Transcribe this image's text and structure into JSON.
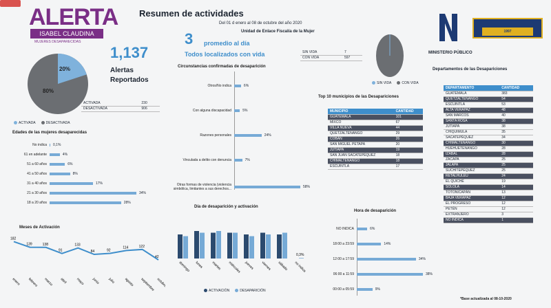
{
  "header": {
    "logo_title": "ALERTA",
    "logo_subtitle": "ISABEL CLAUDINA",
    "logo_tag": "MUJERES DESAPARECIDAS",
    "title": "Resumen de actividades",
    "date_range": "Del 01 d enero al 08 de octubre del año 2020",
    "unit": "Unidad de Enlace Fiscalía de la Mujer",
    "mp_label": "MINISTERIO PÚBLICO",
    "anniv_label": "1997"
  },
  "summary": {
    "alerts_total": "1,137",
    "alerts_label": "Alertas Reportados",
    "avg_value": "3",
    "avg_label": "promedio al día",
    "located_label": "Todos localizados con vida",
    "pie_active_pct": "20%",
    "pie_inactive_pct": "80%",
    "status_table": [
      {
        "label": "ACTIVADA",
        "value": "230"
      },
      {
        "label": "DESACTIVADA",
        "value": "906"
      }
    ],
    "pie_legend": [
      "ACTIVADA",
      "DESACTIVADA"
    ],
    "life_table": [
      {
        "label": "SIN VIDA",
        "value": "7"
      },
      {
        "label": "CON VIDA",
        "value": "597"
      }
    ],
    "life_legend": [
      "SIN VIDA",
      "CON VIDA"
    ]
  },
  "ages": {
    "title": "Edades de las mujeres desaparecidas",
    "rows": [
      {
        "label": "No indica",
        "pct": "0,1%",
        "value": 0.1
      },
      {
        "label": "61 en adelante",
        "pct": "4%",
        "value": 4
      },
      {
        "label": "51 a 60 años",
        "pct": "6%",
        "value": 6
      },
      {
        "label": "41 a 50 años",
        "pct": "8%",
        "value": 8
      },
      {
        "label": "31 a 40 años",
        "pct": "17%",
        "value": 17
      },
      {
        "label": "21 a 30 años",
        "pct": "34%",
        "value": 34
      },
      {
        "label": "18 a 20 años",
        "pct": "28%",
        "value": 28
      }
    ]
  },
  "circumstances": {
    "title": "Circunstancias confirmadas de desaparición",
    "rows": [
      {
        "label": "Otros/No indica",
        "pct": "6%",
        "value": 6
      },
      {
        "label": "Con alguna discapacidad",
        "pct": "5%",
        "value": 5
      },
      {
        "label": "Razones personales",
        "pct": "24%",
        "value": 24
      },
      {
        "label": "Vinculada a delito con denuncia",
        "pct": "7%",
        "value": 7
      },
      {
        "label": "Otras formas de violencia (violencia simbólica, limitantes a sus derechos...",
        "pct": "58%",
        "value": 58
      }
    ]
  },
  "municipios": {
    "title": "Top 10 municipios de las Desapariciones",
    "col_name": "MUNICIPIO",
    "col_qty": "CANTIDAD",
    "rows": [
      {
        "name": "GUATEMALA",
        "qty": "101"
      },
      {
        "name": "MIXCO",
        "qty": "67"
      },
      {
        "name": "VILLA NUEVA",
        "qty": "44"
      },
      {
        "name": "QUETZALTENANGO",
        "qty": "29"
      },
      {
        "name": "COBÁN",
        "qty": "26"
      },
      {
        "name": "SAN MIGUEL PETAPA",
        "qty": "20"
      },
      {
        "name": "JUTIAPA",
        "qty": "19"
      },
      {
        "name": "SAN JUAN SACATEPÉQUEZ",
        "qty": "18"
      },
      {
        "name": "CHIMALTENANGO",
        "qty": "18"
      },
      {
        "name": "ESCUINTLA",
        "qty": "17"
      }
    ]
  },
  "departamentos": {
    "title": "Departamentos de las Desapariciones",
    "col_name": "DEPARTAMENTO",
    "col_qty": "CANTIDAD",
    "rows": [
      {
        "name": "GUATEMALA",
        "qty": "383"
      },
      {
        "name": "QUETZALTENANGO",
        "qty": "54"
      },
      {
        "name": "ESCUINTLA",
        "qty": "53"
      },
      {
        "name": "ALTA VERAPAZ",
        "qty": "48"
      },
      {
        "name": "SAN MARCOS",
        "qty": "40"
      },
      {
        "name": "SANTA ROSA",
        "qty": "38"
      },
      {
        "name": "JUTIAPA",
        "qty": "38"
      },
      {
        "name": "CHIQUIMULA",
        "qty": "35"
      },
      {
        "name": "SACATEPÉQUEZ",
        "qty": "34"
      },
      {
        "name": "CHIMALTENANGO",
        "qty": "30"
      },
      {
        "name": "HUEHUETENANGO",
        "qty": "28"
      },
      {
        "name": "IZABAL",
        "qty": "28"
      },
      {
        "name": "ZACAPA",
        "qty": "25"
      },
      {
        "name": "JALAPA",
        "qty": "25"
      },
      {
        "name": "SUCHITEPÉQUEZ",
        "qty": "25"
      },
      {
        "name": "RETALHULEU",
        "qty": "24"
      },
      {
        "name": "EL QUICHÉ",
        "qty": "19"
      },
      {
        "name": "SOLOLÁ",
        "qty": "14"
      },
      {
        "name": "TOTONICAPÁN",
        "qty": "13"
      },
      {
        "name": "BAJA VERAPAZ",
        "qty": "12"
      },
      {
        "name": "EL PROGRESO",
        "qty": "12"
      },
      {
        "name": "PETÉN",
        "qty": "12"
      },
      {
        "name": "EXTRANJERO",
        "qty": "3"
      },
      {
        "name": "NO INDICA",
        "qty": "1"
      }
    ],
    "footnote": "*Base actualizada al 08-10-2020"
  },
  "hours": {
    "title": "Hora de desaparición",
    "rows": [
      {
        "label": "NO INDICA",
        "pct": "6%",
        "value": 6
      },
      {
        "label": "18:00 a 23:59",
        "pct": "14%",
        "value": 14
      },
      {
        "label": "12:00 a 17:59",
        "pct": "34%",
        "value": 34
      },
      {
        "label": "06:00 a 11:59",
        "pct": "38%",
        "value": 38
      },
      {
        "label": "00:00 a 05:59",
        "pct": "9%",
        "value": 9
      }
    ]
  },
  "chart_data": [
    {
      "type": "line",
      "title": "Meses de Activación",
      "categories": [
        "enero",
        "febrero",
        "marzo",
        "abril",
        "mayo",
        "junio",
        "julio",
        "agosto",
        "septiembre",
        "octubre"
      ],
      "values": [
        182,
        139,
        138,
        91,
        133,
        84,
        92,
        114,
        122,
        42
      ]
    },
    {
      "type": "bar",
      "title": "Día de desaparición y activación",
      "categories": [
        "domingo",
        "lunes",
        "martes",
        "miércoles",
        "jueves",
        "viernes",
        "sábado",
        "no indica"
      ],
      "series": [
        {
          "name": "ACTIVACIÓN",
          "values": [
            14,
            16,
            15,
            15,
            14,
            15,
            14,
            0
          ]
        },
        {
          "name": "DESAPARICIÓN",
          "values": [
            13,
            15,
            16,
            15,
            13,
            14,
            15,
            0.3
          ]
        }
      ],
      "label_last": "0,3%"
    }
  ]
}
